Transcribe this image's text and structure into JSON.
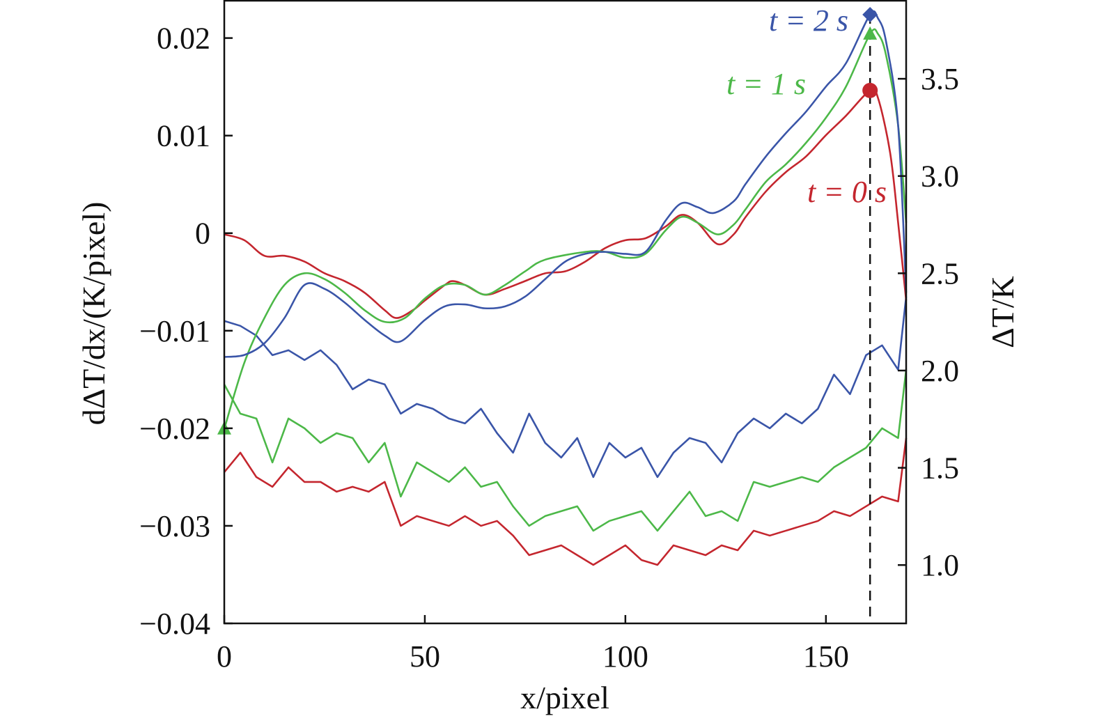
{
  "chart_data": {
    "type": "line",
    "xlabel": "x/pixel",
    "ylabel_left": "dΔT/dx/(K/pixel)",
    "ylabel_right": "ΔT/K",
    "xlim": [
      0,
      170
    ],
    "ylim_left": [
      -0.04,
      0.0239
    ],
    "ylim_right": [
      0.7,
      3.905
    ],
    "x_ticks": [
      "0",
      "50",
      "100",
      "150"
    ],
    "x_tick_values": [
      0,
      50,
      100,
      150
    ],
    "left_ticks": [
      "0.02",
      "0.01",
      "0",
      "−0.01",
      "−0.02",
      "−0.03",
      "−0.04"
    ],
    "left_tick_values": [
      0.02,
      0.01,
      0,
      -0.01,
      -0.02,
      -0.03,
      -0.04
    ],
    "right_ticks": [
      "3.5",
      "3.0",
      "2.5",
      "2.0",
      "1.5",
      "1.0"
    ],
    "right_tick_values": [
      3.5,
      3.0,
      2.5,
      2.0,
      1.5,
      1.0
    ],
    "grid": false,
    "vline_x": 161,
    "colors": {
      "t0": "#c4262e",
      "t1": "#4cb848",
      "t2": "#3a55a8"
    },
    "annotations": [
      {
        "text": "t = 2 s",
        "series": "t2"
      },
      {
        "text": "t = 1 s",
        "series": "t1"
      },
      {
        "text": "t = 0 s",
        "series": "t0"
      }
    ],
    "deltaT_series": [
      {
        "name": "t = 0 s ΔT",
        "key": "t0",
        "axis": "right",
        "marker": "circle",
        "marker_x": 161,
        "marker_y": 3.44,
        "x": [
          0,
          5,
          10,
          15,
          20,
          25,
          30,
          35,
          40,
          43,
          47,
          50,
          55,
          57,
          60,
          65,
          70,
          75,
          80,
          85,
          90,
          95,
          100,
          105,
          110,
          114,
          118,
          123,
          127,
          130,
          135,
          140,
          145,
          150,
          155,
          161,
          163,
          166,
          168,
          170
        ],
        "y": [
          2.7,
          2.67,
          2.59,
          2.59,
          2.56,
          2.5,
          2.46,
          2.4,
          2.31,
          2.27,
          2.31,
          2.36,
          2.44,
          2.46,
          2.44,
          2.39,
          2.42,
          2.46,
          2.5,
          2.51,
          2.56,
          2.63,
          2.67,
          2.68,
          2.74,
          2.8,
          2.76,
          2.65,
          2.7,
          2.79,
          2.92,
          3.02,
          3.1,
          3.21,
          3.31,
          3.44,
          3.4,
          3.12,
          2.76,
          2.36
        ]
      },
      {
        "name": "t = 1 s ΔT",
        "key": "t1",
        "axis": "right",
        "marker": "triangle",
        "marker_x": 161,
        "marker_y": 3.73,
        "start_marker": true,
        "x": [
          0,
          5,
          10,
          15,
          20,
          25,
          30,
          35,
          40,
          45,
          50,
          55,
          60,
          65,
          70,
          75,
          80,
          90,
          95,
          100,
          105,
          110,
          114,
          118,
          123,
          127,
          130,
          135,
          140,
          145,
          150,
          155,
          161,
          163,
          165,
          168,
          170
        ],
        "y": [
          1.7,
          2.04,
          2.27,
          2.44,
          2.5,
          2.47,
          2.4,
          2.31,
          2.25,
          2.27,
          2.37,
          2.44,
          2.44,
          2.39,
          2.44,
          2.51,
          2.57,
          2.61,
          2.61,
          2.58,
          2.6,
          2.72,
          2.79,
          2.76,
          2.7,
          2.75,
          2.83,
          2.97,
          3.06,
          3.17,
          3.3,
          3.46,
          3.73,
          3.73,
          3.62,
          3.26,
          2.76
        ]
      },
      {
        "name": "t = 2 s ΔT",
        "key": "t2",
        "axis": "right",
        "marker": "diamond",
        "marker_x": 161,
        "marker_y": 3.83,
        "x": [
          0,
          5,
          10,
          15,
          20,
          25,
          30,
          35,
          40,
          44,
          50,
          55,
          60,
          65,
          70,
          75,
          80,
          85,
          90,
          95,
          100,
          105,
          110,
          114,
          118,
          122,
          127,
          130,
          135,
          140,
          145,
          150,
          155,
          161,
          163,
          165,
          168,
          170
        ],
        "y": [
          2.07,
          2.08,
          2.14,
          2.27,
          2.44,
          2.42,
          2.35,
          2.26,
          2.18,
          2.15,
          2.26,
          2.33,
          2.34,
          2.32,
          2.33,
          2.38,
          2.47,
          2.56,
          2.6,
          2.61,
          2.6,
          2.61,
          2.77,
          2.86,
          2.84,
          2.81,
          2.87,
          2.96,
          3.1,
          3.22,
          3.33,
          3.46,
          3.58,
          3.83,
          3.81,
          3.69,
          3.26,
          2.4
        ]
      }
    ],
    "derivative_x": [
      0,
      4,
      8,
      12,
      16,
      20,
      24,
      28,
      32,
      36,
      40,
      44,
      48,
      52,
      56,
      60,
      64,
      68,
      72,
      76,
      80,
      84,
      88,
      92,
      96,
      100,
      104,
      108,
      112,
      116,
      120,
      124,
      128,
      132,
      136,
      140,
      144,
      148,
      152,
      156,
      160,
      164,
      168,
      170
    ],
    "derivative_series": [
      {
        "name": "t = 0 s dΔT/dx",
        "key": "t0",
        "axis": "left",
        "y": [
          -0.0245,
          -0.0225,
          -0.025,
          -0.026,
          -0.024,
          -0.0255,
          -0.0255,
          -0.0265,
          -0.026,
          -0.0265,
          -0.0255,
          -0.03,
          -0.029,
          -0.0295,
          -0.03,
          -0.029,
          -0.03,
          -0.0295,
          -0.031,
          -0.033,
          -0.0325,
          -0.032,
          -0.033,
          -0.034,
          -0.033,
          -0.032,
          -0.0335,
          -0.034,
          -0.032,
          -0.0325,
          -0.033,
          -0.032,
          -0.0325,
          -0.0305,
          -0.031,
          -0.0305,
          -0.03,
          -0.0295,
          -0.0285,
          -0.029,
          -0.028,
          -0.027,
          -0.0275,
          -0.021
        ]
      },
      {
        "name": "t = 1 s dΔT/dx",
        "key": "t1",
        "axis": "left",
        "y": [
          -0.0155,
          -0.0185,
          -0.019,
          -0.0235,
          -0.019,
          -0.02,
          -0.0215,
          -0.0205,
          -0.021,
          -0.0235,
          -0.0215,
          -0.027,
          -0.0235,
          -0.0245,
          -0.0255,
          -0.024,
          -0.026,
          -0.0255,
          -0.028,
          -0.03,
          -0.029,
          -0.0285,
          -0.028,
          -0.0305,
          -0.0295,
          -0.029,
          -0.0285,
          -0.0305,
          -0.0285,
          -0.0265,
          -0.029,
          -0.0285,
          -0.0295,
          -0.0255,
          -0.026,
          -0.0255,
          -0.025,
          -0.0255,
          -0.024,
          -0.023,
          -0.022,
          -0.02,
          -0.021,
          -0.014
        ]
      },
      {
        "name": "t = 2 s dΔT/dx",
        "key": "t2",
        "axis": "left",
        "y": [
          -0.009,
          -0.0095,
          -0.0105,
          -0.0125,
          -0.012,
          -0.013,
          -0.012,
          -0.0135,
          -0.016,
          -0.015,
          -0.0155,
          -0.0185,
          -0.0175,
          -0.018,
          -0.019,
          -0.0195,
          -0.018,
          -0.0205,
          -0.0225,
          -0.0185,
          -0.0215,
          -0.023,
          -0.021,
          -0.025,
          -0.0215,
          -0.023,
          -0.022,
          -0.025,
          -0.0225,
          -0.021,
          -0.0215,
          -0.0235,
          -0.0205,
          -0.019,
          -0.02,
          -0.0185,
          -0.0195,
          -0.018,
          -0.0145,
          -0.0165,
          -0.0125,
          -0.0115,
          -0.014,
          -0.0065
        ]
      }
    ]
  }
}
